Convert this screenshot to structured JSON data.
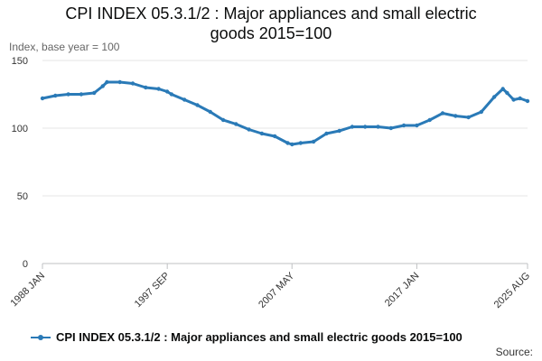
{
  "chart_data": {
    "type": "line",
    "title_lines": [
      "CPI INDEX 05.3.1/2 : Major appliances and small electric",
      "goods 2015=100"
    ],
    "ylabel": "Index, base year = 100",
    "xlabel": "",
    "ylim": [
      0,
      150
    ],
    "yticks": [
      "0",
      "50",
      "100",
      "150"
    ],
    "xticks": [
      {
        "label": "1988 JAN",
        "t": 1988.0
      },
      {
        "label": "1997 SEP",
        "t": 1997.67
      },
      {
        "label": "2007 MAY",
        "t": 2007.33
      },
      {
        "label": "2017 JAN",
        "t": 2017.0
      },
      {
        "label": "2025 AUG",
        "t": 2025.58
      }
    ],
    "grid": true,
    "legend_position": "bottom",
    "color": "#2a7ab7",
    "series": [
      {
        "name": "CPI INDEX 05.3.1/2 : Major appliances and small electric goods 2015=100",
        "points": [
          [
            "1988 JAN",
            122
          ],
          [
            "1989 JAN",
            124
          ],
          [
            "1990 JAN",
            125
          ],
          [
            "1991 JAN",
            125
          ],
          [
            "1992 JAN",
            126
          ],
          [
            "1992 SEP",
            131
          ],
          [
            "1993 JAN",
            134
          ],
          [
            "1994 JAN",
            134
          ],
          [
            "1995 JAN",
            133
          ],
          [
            "1996 JAN",
            130
          ],
          [
            "1997 JAN",
            129
          ],
          [
            "1997 SEP",
            127
          ],
          [
            "1998 JAN",
            125
          ],
          [
            "1999 JAN",
            121
          ],
          [
            "2000 JAN",
            117
          ],
          [
            "2001 JAN",
            112
          ],
          [
            "2002 JAN",
            106
          ],
          [
            "2003 JAN",
            103
          ],
          [
            "2004 JAN",
            99
          ],
          [
            "2005 JAN",
            96
          ],
          [
            "2006 JAN",
            94
          ],
          [
            "2007 JAN",
            89
          ],
          [
            "2007 MAY",
            88
          ],
          [
            "2008 JAN",
            89
          ],
          [
            "2009 JAN",
            90
          ],
          [
            "2010 JAN",
            96
          ],
          [
            "2011 JAN",
            98
          ],
          [
            "2012 JAN",
            101
          ],
          [
            "2013 JAN",
            101
          ],
          [
            "2014 JAN",
            101
          ],
          [
            "2015 JAN",
            100
          ],
          [
            "2016 JAN",
            102
          ],
          [
            "2017 JAN",
            102
          ],
          [
            "2018 JAN",
            106
          ],
          [
            "2019 JAN",
            111
          ],
          [
            "2020 JAN",
            109
          ],
          [
            "2021 JAN",
            108
          ],
          [
            "2022 JAN",
            112
          ],
          [
            "2023 JAN",
            123
          ],
          [
            "2023 SEP",
            129
          ],
          [
            "2024 JAN",
            126
          ],
          [
            "2024 JUL",
            121
          ],
          [
            "2025 JAN",
            122
          ],
          [
            "2025 AUG",
            120
          ]
        ]
      }
    ]
  },
  "source_label": "Source:"
}
